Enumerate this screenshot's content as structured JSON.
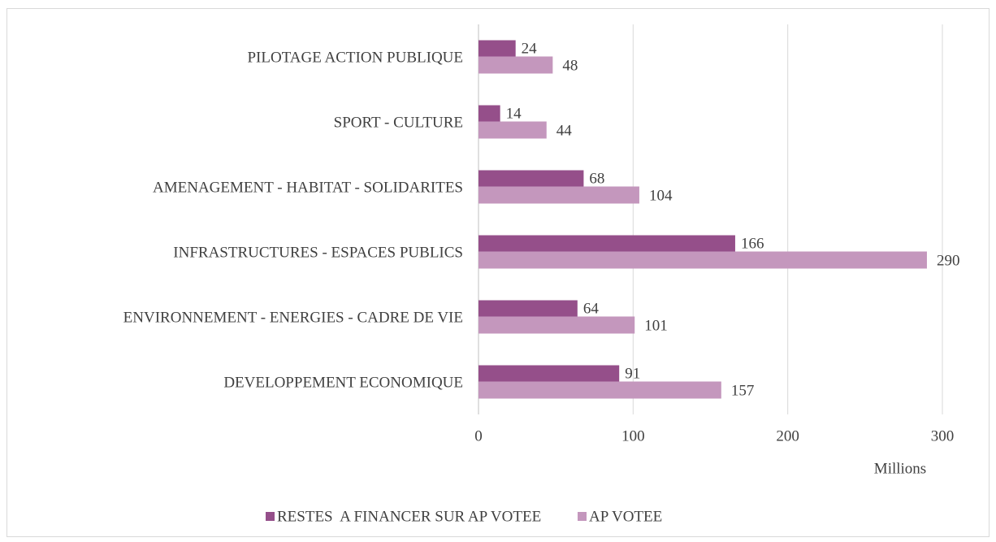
{
  "chart_data": {
    "type": "hbar",
    "categories": [
      "PILOTAGE ACTION PUBLIQUE",
      "SPORT - CULTURE",
      "AMENAGEMENT - HABITAT - SOLIDARITES",
      "INFRASTRUCTURES - ESPACES PUBLICS",
      "ENVIRONNEMENT - ENERGIES - CADRE DE VIE",
      "DEVELOPPEMENT ECONOMIQUE"
    ],
    "series": [
      {
        "name": "RESTES  A FINANCER SUR AP VOTEE",
        "color": "#954f8a",
        "values": [
          24,
          14,
          68,
          166,
          64,
          91
        ]
      },
      {
        "name": "AP VOTEE",
        "color": "#c497bd",
        "values": [
          48,
          44,
          104,
          290,
          101,
          157
        ]
      }
    ],
    "x_label": "Millions",
    "xlim": [
      0,
      300
    ],
    "xticks": [
      0,
      100,
      200,
      300
    ],
    "grid": true,
    "legend": "bottom"
  }
}
